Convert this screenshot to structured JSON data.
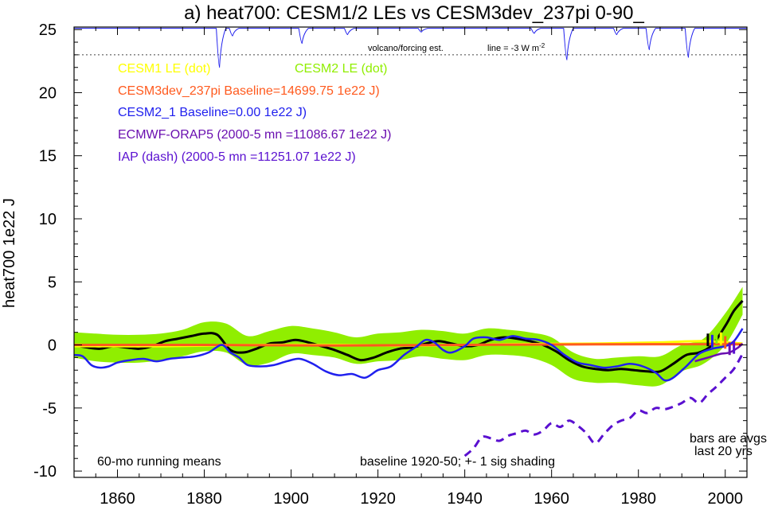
{
  "chart_data": {
    "type": "line",
    "title": "a) heat700: CESM1/2 LEs vs CESM3dev_237pi 0-90_",
    "ylabel": "heat700 1e22 J",
    "xlabel": "",
    "xlim": [
      1850,
      2005
    ],
    "ylim": [
      -10.5,
      25.2
    ],
    "x_ticks": [
      1860,
      1880,
      1900,
      1920,
      1940,
      1960,
      1980,
      2000
    ],
    "y_ticks": [
      25,
      20,
      15,
      10,
      5,
      0,
      -5,
      -10
    ],
    "legend": [
      {
        "text": "CESM1 LE (dot)",
        "color": "#ffff00"
      },
      {
        "text": "CESM2 LE (dot)",
        "color": "#90ee00"
      },
      {
        "text": "CESM3dev_237pi Baseline=14699.75 1e22 J)",
        "color": "#ff5a1e"
      },
      {
        "text": "CESM2_1 Baseline=0.00 1e22 J)",
        "color": "#2020ee"
      },
      {
        "text": "ECMWF-ORAP5 (2000-5 mn =11086.67 1e22 J)",
        "color": "#6a0fb0"
      },
      {
        "text": "IAP (dash) (2000-5 mn =11251.07 1e22 J)",
        "color": "#5a10d0"
      }
    ],
    "annotations": {
      "volcano": "volcano/forcing est.",
      "line_note_prefix": "line = -3 W m",
      "line_note_sup": "-2",
      "running": "60-mo running means",
      "baseline": "baseline 1920-50; +- 1 sig shading",
      "bars1": "bars are avgs",
      "bars2": "last 20 yrs"
    },
    "volcano_reference_line": 23,
    "volcano_spikes": [
      {
        "x": 1883.5,
        "depth": 3.1
      },
      {
        "x": 1886.5,
        "depth": 0.6
      },
      {
        "x": 1902.5,
        "depth": 1.2
      },
      {
        "x": 1913,
        "depth": 0.5
      },
      {
        "x": 1963.5,
        "depth": 2.5
      },
      {
        "x": 1982.5,
        "depth": 1.7
      },
      {
        "x": 1991.5,
        "depth": 2.3
      },
      {
        "x": 1975,
        "depth": 0.5
      },
      {
        "x": 1930,
        "depth": 0.3
      },
      {
        "x": 1956,
        "depth": 0.4
      }
    ],
    "series": [
      {
        "name": "CESM2 LE spread (+-1 sig)",
        "color": "#90ee00",
        "x": [
          1850,
          1855,
          1860,
          1865,
          1870,
          1875,
          1880,
          1885,
          1890,
          1895,
          1900,
          1905,
          1910,
          1915,
          1920,
          1925,
          1930,
          1935,
          1940,
          1945,
          1950,
          1955,
          1960,
          1965,
          1970,
          1975,
          1980,
          1985,
          1990,
          1995,
          2000,
          2004
        ],
        "upper": [
          1.0,
          0.9,
          0.8,
          0.8,
          0.9,
          1.2,
          1.8,
          1.7,
          0.7,
          1.1,
          1.5,
          1.3,
          1.0,
          0.6,
          0.9,
          1.0,
          1.2,
          1.1,
          0.9,
          1.3,
          1.2,
          1.0,
          0.6,
          -0.6,
          -1.1,
          -1.0,
          -0.9,
          -0.9,
          0.0,
          0.5,
          2.5,
          4.6
        ],
        "lower": [
          -1.0,
          -1.3,
          -1.4,
          -1.4,
          -1.2,
          -0.9,
          -0.5,
          -0.6,
          -1.6,
          -1.4,
          -0.7,
          -0.8,
          -1.0,
          -1.5,
          -1.3,
          -1.2,
          -0.9,
          -1.1,
          -1.2,
          -0.8,
          -0.8,
          -1.0,
          -1.6,
          -2.7,
          -3.0,
          -3.0,
          -3.2,
          -3.2,
          -2.1,
          -1.5,
          0.0,
          2.4
        ]
      },
      {
        "name": "CESM2 LE mean",
        "color": "#000000",
        "x": [
          1850,
          1853,
          1856,
          1859,
          1862,
          1865,
          1868,
          1871,
          1874,
          1877,
          1880,
          1883,
          1886,
          1889,
          1892,
          1895,
          1898,
          1901,
          1904,
          1907,
          1910,
          1913,
          1916,
          1919,
          1922,
          1925,
          1928,
          1931,
          1934,
          1937,
          1940,
          1943,
          1946,
          1949,
          1952,
          1955,
          1958,
          1961,
          1964,
          1967,
          1970,
          1973,
          1976,
          1979,
          1982,
          1985,
          1988,
          1991,
          1994,
          1997,
          2000,
          2002,
          2004
        ],
        "values": [
          0.0,
          -0.2,
          -0.3,
          -0.1,
          -0.2,
          -0.3,
          -0.1,
          0.3,
          0.5,
          0.7,
          0.9,
          0.8,
          -0.4,
          -0.6,
          -0.3,
          0.1,
          0.2,
          0.4,
          0.2,
          -0.1,
          -0.4,
          -0.8,
          -1.2,
          -1.0,
          -0.6,
          -0.3,
          -0.2,
          0.1,
          0.3,
          0.1,
          -0.1,
          0.0,
          0.4,
          0.6,
          0.5,
          0.3,
          0.0,
          -0.5,
          -1.2,
          -1.7,
          -1.9,
          -2.0,
          -1.9,
          -2.0,
          -2.1,
          -2.1,
          -1.5,
          -0.8,
          -0.6,
          0.0,
          1.5,
          2.7,
          3.5
        ]
      },
      {
        "name": "CESM1 LE",
        "color": "#ffff00",
        "x": [
          1850,
          1870,
          1890,
          1910,
          1930,
          1950,
          1970,
          1985,
          1995,
          2004
        ],
        "values": [
          -0.1,
          -0.1,
          0.0,
          0.0,
          -0.05,
          0.05,
          0.1,
          0.2,
          0.3,
          0.1
        ]
      },
      {
        "name": "CESM3dev_237pi",
        "color": "#ff5a1e",
        "x": [
          1850,
          1880,
          1910,
          1940,
          1970,
          2004
        ],
        "values": [
          0.0,
          0.0,
          -0.05,
          0.0,
          0.05,
          0.05
        ]
      },
      {
        "name": "CESM2_1",
        "color": "#2020ee",
        "x": [
          1850,
          1852,
          1854,
          1856,
          1858,
          1860,
          1863,
          1866,
          1869,
          1872,
          1875,
          1878,
          1881,
          1884,
          1886,
          1888,
          1890,
          1893,
          1896,
          1899,
          1902,
          1905,
          1908,
          1911,
          1914,
          1917,
          1920,
          1923,
          1926,
          1929,
          1931,
          1933,
          1935,
          1937,
          1940,
          1942,
          1945,
          1948,
          1951,
          1954,
          1957,
          1960,
          1963,
          1966,
          1969,
          1972,
          1975,
          1978,
          1981,
          1984,
          1986,
          1988,
          1991,
          1994,
          1997,
          2000,
          2002,
          2004
        ],
        "values": [
          -0.8,
          -0.9,
          -1.6,
          -1.8,
          -1.7,
          -1.4,
          -1.2,
          -1.1,
          -1.3,
          -1.1,
          -1.0,
          -0.9,
          -0.6,
          0.0,
          -0.6,
          -1.0,
          -1.6,
          -1.7,
          -1.6,
          -1.3,
          -1.1,
          -1.5,
          -2.1,
          -2.4,
          -2.3,
          -2.6,
          -2.0,
          -1.7,
          -0.8,
          -0.1,
          0.4,
          0.2,
          -0.4,
          -0.6,
          -0.1,
          0.5,
          0.6,
          0.4,
          0.7,
          0.5,
          0.4,
          0.0,
          -0.8,
          -1.4,
          -1.6,
          -1.8,
          -1.7,
          -1.5,
          -1.7,
          -2.2,
          -2.8,
          -2.6,
          -1.7,
          -0.7,
          -0.3,
          -0.1,
          0.3,
          1.3
        ]
      },
      {
        "name": "IAP",
        "color": "#5a10d0",
        "x": [
          1940,
          1942,
          1944,
          1946,
          1948,
          1950,
          1952,
          1954,
          1956,
          1958,
          1960,
          1962,
          1964,
          1966,
          1968,
          1970,
          1972,
          1974,
          1976,
          1978,
          1980,
          1982,
          1984,
          1986,
          1988,
          1990,
          1992,
          1994,
          1996,
          1998,
          2000,
          2002,
          2004
        ],
        "values": [
          -8.8,
          -8.2,
          -7.3,
          -7.4,
          -7.6,
          -7.2,
          -7.0,
          -6.8,
          -7.1,
          -6.8,
          -6.2,
          -6.5,
          -6.0,
          -6.4,
          -7.0,
          -7.8,
          -7.1,
          -6.4,
          -6.0,
          -5.8,
          -5.2,
          -5.4,
          -5.0,
          -5.1,
          -4.9,
          -4.6,
          -4.2,
          -4.6,
          -3.9,
          -3.3,
          -2.6,
          -1.9,
          -0.7
        ]
      },
      {
        "name": "ECMWF-ORAP5",
        "color": "#6a0fb0",
        "x": [
          1993,
          1995,
          1997,
          1999,
          2001,
          2003,
          2004
        ],
        "values": [
          -1.3,
          -1.1,
          -0.9,
          -0.7,
          -0.6,
          -0.2,
          0.1
        ]
      }
    ],
    "bars": [
      {
        "x": 1996,
        "color": "#000000",
        "value": 0.4
      },
      {
        "x": 1997,
        "color": "#2020ee",
        "value": 0.3
      },
      {
        "x": 1998,
        "color": "#90ee00",
        "value": 0.6
      },
      {
        "x": 1999,
        "color": "#ffff00",
        "value": 0.5
      },
      {
        "x": 2000,
        "color": "#ff5a1e",
        "value": 0.2
      },
      {
        "x": 2001,
        "color": "#6a0fb0",
        "value": -0.3
      },
      {
        "x": 2002,
        "color": "#5a10d0",
        "value": -0.2
      }
    ]
  }
}
